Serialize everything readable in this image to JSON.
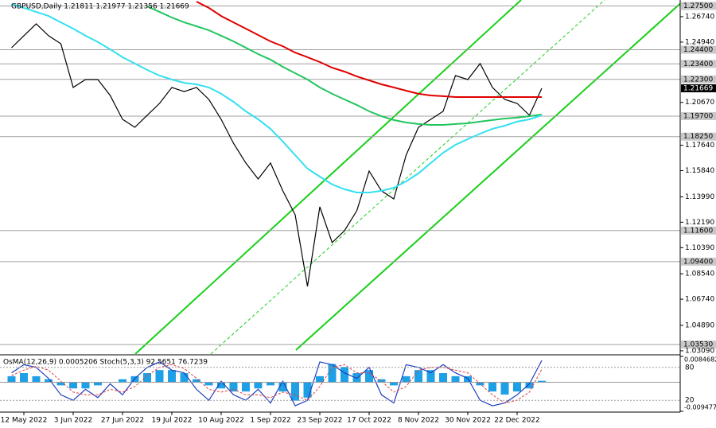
{
  "chart_data": [
    {
      "type": "line",
      "title": "GBPUSD,Daily  1.21811 1.21977 1.21356 1.21669",
      "categories": [
        null,
        "12 May 2022",
        null,
        null,
        null,
        "3 Jun 2022",
        null,
        null,
        null,
        "27 Jun 2022",
        null,
        null,
        null,
        "19 Jul 2022",
        null,
        null,
        null,
        "10 Aug 2022",
        null,
        null,
        null,
        "1 Sep 2022",
        null,
        null,
        null,
        "23 Sep 2022",
        null,
        null,
        null,
        "17 Oct 2022",
        null,
        null,
        null,
        "8 Nov 2022",
        null,
        null,
        null,
        "30 Nov 2022",
        null,
        null,
        null,
        "22 Dec 2022",
        null,
        null
      ],
      "series": [
        {
          "color": "#000000",
          "values": [
            1.2454,
            1.2539,
            1.2623,
            1.2539,
            1.2482,
            1.2173,
            1.2229,
            1.2229,
            1.2116,
            1.1947,
            1.1891,
            1.1976,
            1.206,
            1.2173,
            1.2144,
            1.2173,
            1.2088,
            1.1947,
            1.1778,
            1.1638,
            1.1525,
            1.1638,
            1.1441,
            1.1272,
            1.0765,
            1.1328,
            1.1075,
            1.1159,
            1.13,
            1.1581,
            1.1441,
            1.1384,
            1.1694,
            1.1891,
            1.1947,
            1.2004,
            1.2257,
            1.2229,
            1.2342,
            1.2173,
            1.2088,
            1.206,
            1.1976,
            1.2167
          ]
        },
        {
          "color": "#e00000",
          "values": [
            null,
            null,
            null,
            null,
            null,
            null,
            null,
            null,
            null,
            null,
            null,
            null,
            null,
            null,
            null,
            1.2781,
            1.2736,
            1.2679,
            1.2634,
            1.2589,
            1.2544,
            1.2499,
            1.2465,
            1.242,
            1.2387,
            1.2353,
            1.2313,
            1.2285,
            1.2251,
            1.2223,
            1.2195,
            1.2173,
            1.215,
            1.2128,
            1.2116,
            1.2111,
            1.2105,
            1.2105,
            1.2105,
            1.2105,
            1.2105,
            1.2105,
            1.2105,
            1.2105
          ]
        },
        {
          "color": "#22c55e",
          "values": [
            null,
            null,
            null,
            null,
            null,
            null,
            null,
            null,
            null,
            null,
            null,
            1.2747,
            1.2708,
            1.2668,
            1.2634,
            1.2606,
            1.2578,
            1.2539,
            1.2499,
            1.2454,
            1.2409,
            1.237,
            1.2319,
            1.2274,
            1.2229,
            1.2173,
            1.2128,
            1.2088,
            1.2049,
            1.2004,
            1.197,
            1.1942,
            1.1925,
            1.1914,
            1.1908,
            1.1908,
            1.1914,
            1.1919,
            1.1931,
            1.1942,
            1.1953,
            1.1959,
            1.197,
            1.1981
          ]
        },
        {
          "color": "#33e0f0",
          "values": [
            1.2764,
            1.2736,
            1.2708,
            1.2679,
            1.2634,
            1.2589,
            1.2539,
            1.2494,
            1.2443,
            1.2387,
            1.2342,
            1.2297,
            1.2257,
            1.2229,
            1.2206,
            1.2195,
            1.2173,
            1.2128,
            1.2071,
            1.2004,
            1.1947,
            1.188,
            1.179,
            1.1694,
            1.1598,
            1.1542,
            1.1486,
            1.1452,
            1.1429,
            1.1429,
            1.1441,
            1.1463,
            1.1508,
            1.1565,
            1.1638,
            1.1711,
            1.1767,
            1.1807,
            1.1846,
            1.188,
            1.1902,
            1.1931,
            1.1947,
            1.1976
          ]
        }
      ],
      "ylim": [
        1.0286,
        1.2792
      ],
      "yticks": [
        {
          "value": 1.2674,
          "label": "1.26740"
        },
        {
          "value": 1.2494,
          "label": "1.24940"
        },
        {
          "value": 1.2067,
          "label": "1.20670"
        },
        {
          "value": 1.1764,
          "label": "1.17640"
        },
        {
          "value": 1.1584,
          "label": "1.15840"
        },
        {
          "value": 1.1399,
          "label": "1.13990"
        },
        {
          "value": 1.1219,
          "label": "1.12190"
        },
        {
          "value": 1.1039,
          "label": "1.10390"
        },
        {
          "value": 1.0854,
          "label": "1.08540"
        },
        {
          "value": 1.0674,
          "label": "1.06740"
        },
        {
          "value": 1.0489,
          "label": "1.04890"
        },
        {
          "value": 1.0309,
          "label": "1.03090"
        }
      ],
      "levels": [
        {
          "value": 1.275,
          "label": "1.27500"
        },
        {
          "value": 1.244,
          "label": "1.24400"
        },
        {
          "value": 1.234,
          "label": "1.23400"
        },
        {
          "value": 1.223,
          "label": "1.22300"
        },
        {
          "value": 1.197,
          "label": "1.19700"
        },
        {
          "value": 1.1825,
          "label": "1.18250"
        },
        {
          "value": 1.116,
          "label": "1.11600"
        },
        {
          "value": 1.094,
          "label": "1.09400"
        },
        {
          "value": 1.0353,
          "label": "1.03530"
        }
      ],
      "level_color": "#a0a0a0",
      "price_label": {
        "value": 1.21669,
        "label": "1.21669"
      }
    },
    {
      "type": "bar",
      "title": "OsMA(12,26,9) 0.0005206  Stoch(5,3,3) 92.5651 76.7239",
      "values": [
        0.002,
        0.003,
        0.002,
        0.001,
        -0.001,
        -0.002,
        -0.002,
        -0.001,
        0,
        0.001,
        0.002,
        0.003,
        0.004,
        0.004,
        0.003,
        0.001,
        -0.001,
        -0.002,
        -0.003,
        -0.003,
        -0.002,
        -0.001,
        -0.003,
        -0.006,
        -0.005,
        0.002,
        0.006,
        0.005,
        0.003,
        0.004,
        0.001,
        -0.001,
        0.002,
        0.004,
        0.004,
        0.003,
        0.002,
        0.002,
        -0.001,
        -0.003,
        -0.004,
        -0.003,
        -0.002,
        0.0005
      ],
      "color": "#1ea0e6",
      "ylim": [
        -0.009477,
        0.0084682
      ],
      "yticks": [
        {
          "value": 0.0084682,
          "label": "0.0084682"
        },
        {
          "value": -0.009477,
          "label": "-0.0094770"
        }
      ],
      "series": [
        {
          "axis": "y2",
          "color": "#1f3fbf",
          "values": [
            70,
            85,
            80,
            60,
            30,
            20,
            40,
            25,
            50,
            30,
            60,
            80,
            90,
            75,
            70,
            40,
            20,
            55,
            30,
            20,
            40,
            15,
            55,
            10,
            20,
            90,
            85,
            70,
            60,
            80,
            30,
            15,
            85,
            80,
            70,
            85,
            70,
            60,
            20,
            10,
            15,
            30,
            50,
            92.5651
          ]
        },
        {
          "axis": "y2",
          "color": "#e04040",
          "values": [
            65,
            75,
            82,
            75,
            55,
            35,
            30,
            30,
            40,
            35,
            45,
            65,
            80,
            85,
            78,
            60,
            40,
            35,
            40,
            30,
            30,
            25,
            35,
            30,
            20,
            45,
            80,
            85,
            70,
            70,
            55,
            35,
            45,
            75,
            80,
            80,
            75,
            70,
            50,
            30,
            15,
            20,
            35,
            76.7239
          ]
        }
      ],
      "y2lim": [
        0,
        100
      ],
      "y2ticks": [
        20,
        80
      ]
    }
  ]
}
